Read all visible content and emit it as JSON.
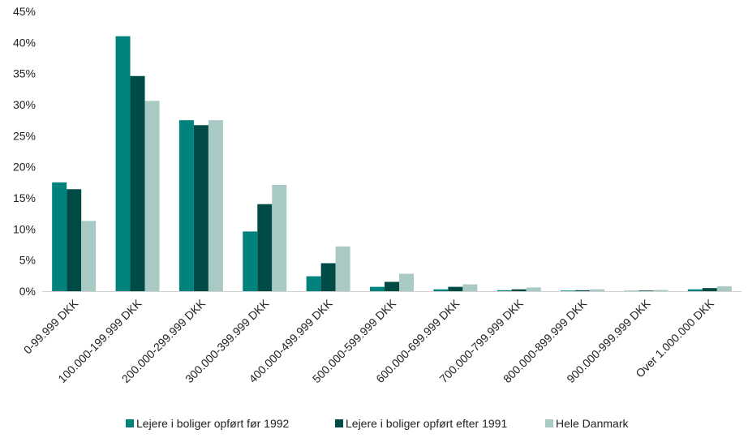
{
  "chart_data": {
    "type": "bar",
    "categories": [
      "0-99.999 DKK",
      "100.000-199.999 DKK",
      "200.000-299.999 DKK",
      "300.000-399.999 DKK",
      "400.000-499.999 DKK",
      "500.000-599.999 DKK",
      "600.000-699.999 DKK",
      "700.000-799.999 DKK",
      "800.000-899.999 DKK",
      "900.000-999.999 DKK",
      "Over 1.000.000 DKK"
    ],
    "series": [
      {
        "name": "Lejere i boliger opført før 1992",
        "color": "#00837D",
        "values": [
          17.5,
          41.0,
          27.5,
          9.6,
          2.4,
          0.7,
          0.3,
          0.15,
          0.1,
          0.05,
          0.3
        ]
      },
      {
        "name": "Lejere i boliger opført efter 1991",
        "color": "#004B45",
        "values": [
          16.4,
          34.6,
          26.7,
          14.0,
          4.5,
          1.5,
          0.7,
          0.3,
          0.15,
          0.1,
          0.5
        ]
      },
      {
        "name": "Hele Danmark",
        "color": "#A9C9C5",
        "values": [
          11.3,
          30.6,
          27.5,
          17.1,
          7.2,
          2.8,
          1.1,
          0.6,
          0.3,
          0.2,
          0.8
        ]
      }
    ],
    "y_ticks": [
      "0%",
      "5%",
      "10%",
      "15%",
      "20%",
      "25%",
      "30%",
      "35%",
      "40%",
      "45%"
    ],
    "ylim": [
      0,
      45
    ],
    "y_unit": "%",
    "grid": false,
    "legend_position": "bottom"
  }
}
